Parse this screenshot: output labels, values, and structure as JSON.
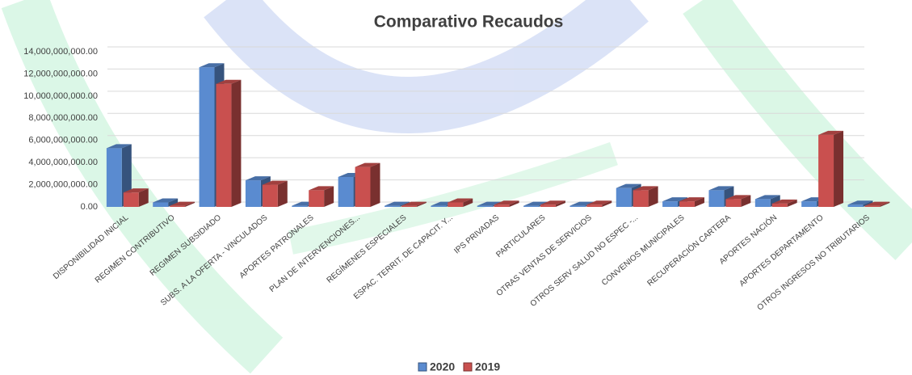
{
  "chart_data": {
    "type": "bar3d",
    "title": "Comparativo Recaudos",
    "categories": [
      "DISPONIBILIDAD INICIAL",
      "REGIMEN CONTRIBUTIVO",
      "REGIMEN SUBSIDIADO",
      "SUBS. A LA OFERTA - VINCULADOS",
      "APORTES PATRONALES",
      "PLAN DE INTERVENCIONES...",
      "REGÍMENES ESPECIALES",
      "ESPAC. TERRIT. DE CAPACIT. Y...",
      "IPS PRIVADAS",
      "PARTICULARES",
      "OTRAS VENTAS DE SERVICIOS",
      "OTROS SERV SALUD NO ESPEC -...",
      "CONVENIOS MUNICIPALES",
      "RECUPERACIÓN CARTERA",
      "APORTES NACIÓN",
      "APORTES DEPARTAMENTO",
      "OTROS INGRESOS NO TRIBUTARIOS"
    ],
    "series": [
      {
        "name": "2020",
        "color": "#5a8bd0",
        "values": [
          5300000000,
          400000000,
          12600000000,
          2400000000,
          100000000,
          2700000000,
          100000000,
          100000000,
          100000000,
          100000000,
          100000000,
          1700000000,
          500000000,
          1500000000,
          700000000,
          500000000,
          200000000
        ]
      },
      {
        "name": "2019",
        "color": "#c9504f",
        "values": [
          1300000000,
          100000000,
          11100000000,
          2000000000,
          1500000000,
          3600000000,
          100000000,
          400000000,
          200000000,
          200000000,
          200000000,
          1500000000,
          500000000,
          700000000,
          300000000,
          6500000000,
          100000000
        ]
      }
    ],
    "ylim": [
      0,
      14000000000
    ],
    "yticks": [
      {
        "value": 0,
        "label": "0.00"
      },
      {
        "value": 2000000000,
        "label": "2,000,000,000.00"
      },
      {
        "value": 4000000000,
        "label": "4,000,000,000.00"
      },
      {
        "value": 6000000000,
        "label": "6,000,000,000.00"
      },
      {
        "value": 8000000000,
        "label": "8,000,000,000.00"
      },
      {
        "value": 10000000000,
        "label": "10,000,000,000.00"
      },
      {
        "value": 12000000000,
        "label": "12,000,000,000.00"
      },
      {
        "value": 14000000000,
        "label": "14,000,000,000.00"
      }
    ],
    "grid": true
  }
}
